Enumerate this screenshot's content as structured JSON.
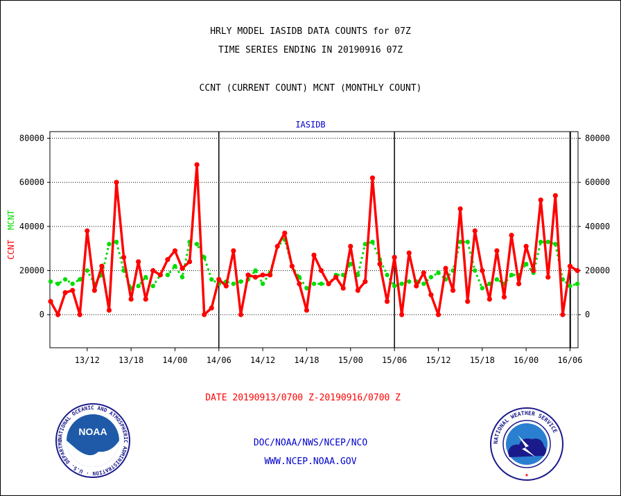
{
  "header": {
    "title_line1": "HRLY MODEL IASIDB DATA COUNTS for 07Z",
    "title_line2": "TIME SERIES ENDING IN 20190916 07Z",
    "subtitle": "CCNT (CURRENT COUNT) MCNT (MONTHLY COUNT)"
  },
  "chart_data": {
    "type": "line",
    "title": "IASIDB",
    "ylabel_series_1": "CCNT",
    "ylabel_series_2": "MCNT",
    "xlabel": "DATE 20190913/0700 Z-20190916/0700 Z",
    "ylim": [
      -15000,
      83000
    ],
    "y_ticks": [
      0,
      20000,
      40000,
      60000,
      80000
    ],
    "y_tick_labels": [
      "0",
      "20000",
      "40000",
      "60000",
      "80000"
    ],
    "x_start": "2019-09-13 07Z",
    "x_end": "2019-09-16 07Z",
    "x_tick_labels": [
      "13/12",
      "13/18",
      "14/00",
      "14/06",
      "14/12",
      "14/18",
      "15/00",
      "15/06",
      "15/12",
      "15/18",
      "16/00",
      "16/06"
    ],
    "day_boundaries": [
      "14/06",
      "15/06",
      "16/06"
    ],
    "grid": true,
    "series": [
      {
        "name": "CCNT",
        "color": "#ff0000",
        "values": [
          6000,
          0,
          10000,
          11000,
          0,
          38000,
          11000,
          22000,
          2000,
          60000,
          26000,
          7000,
          24000,
          7000,
          20000,
          18000,
          25000,
          29000,
          21000,
          24000,
          68000,
          0,
          3000,
          16000,
          13000,
          29000,
          0,
          18000,
          17000,
          18000,
          18000,
          31000,
          37000,
          22000,
          14000,
          2000,
          27000,
          20000,
          14000,
          17000,
          12000,
          31000,
          11000,
          15000,
          62000,
          23000,
          6000,
          26000,
          0,
          28000,
          13000,
          19000,
          9000,
          0,
          21000,
          11000,
          48000,
          6000,
          38000,
          20000,
          7000,
          29000,
          8000,
          36000,
          14000,
          31000,
          20000,
          52000,
          17000,
          54000,
          0,
          22000,
          20000
        ]
      },
      {
        "name": "MCNT",
        "color": "#00dd00",
        "values": [
          15000,
          14000,
          16000,
          14000,
          16000,
          20000,
          14000,
          18000,
          32000,
          33000,
          20000,
          12000,
          13000,
          17000,
          13000,
          18000,
          18000,
          22000,
          17000,
          33000,
          32000,
          26000,
          16000,
          14000,
          15000,
          14000,
          15000,
          16000,
          20000,
          14000,
          19000,
          31000,
          34000,
          22000,
          17000,
          12000,
          14000,
          14000,
          14000,
          18000,
          18000,
          23000,
          18000,
          32000,
          33000,
          25000,
          18000,
          13000,
          14000,
          15000,
          15000,
          14000,
          17000,
          19000,
          16000,
          20000,
          33000,
          33000,
          20000,
          12000,
          14000,
          16000,
          14000,
          18000,
          18000,
          23000,
          19000,
          33000,
          33000,
          32000,
          16000,
          13000,
          14000
        ]
      }
    ]
  },
  "footer": {
    "line1": "DOC/NOAA/NWS/NCEP/NCO",
    "line2": "WWW.NCEP.NOAA.GOV"
  },
  "logos": {
    "noaa": {
      "center_text": "NOAA",
      "ring_text": "NATIONAL OCEANIC AND ATMOSPHERIC ADMINISTRATION · U.S. DEPARTMENT OF COMMERCE"
    },
    "nws": {
      "ring_text": "NATIONAL WEATHER SERVICE"
    }
  },
  "colors": {
    "blue_text": "#0000cc",
    "red_text": "#ff0000",
    "ccnt": "#ff0000",
    "mcnt": "#00dd00"
  }
}
